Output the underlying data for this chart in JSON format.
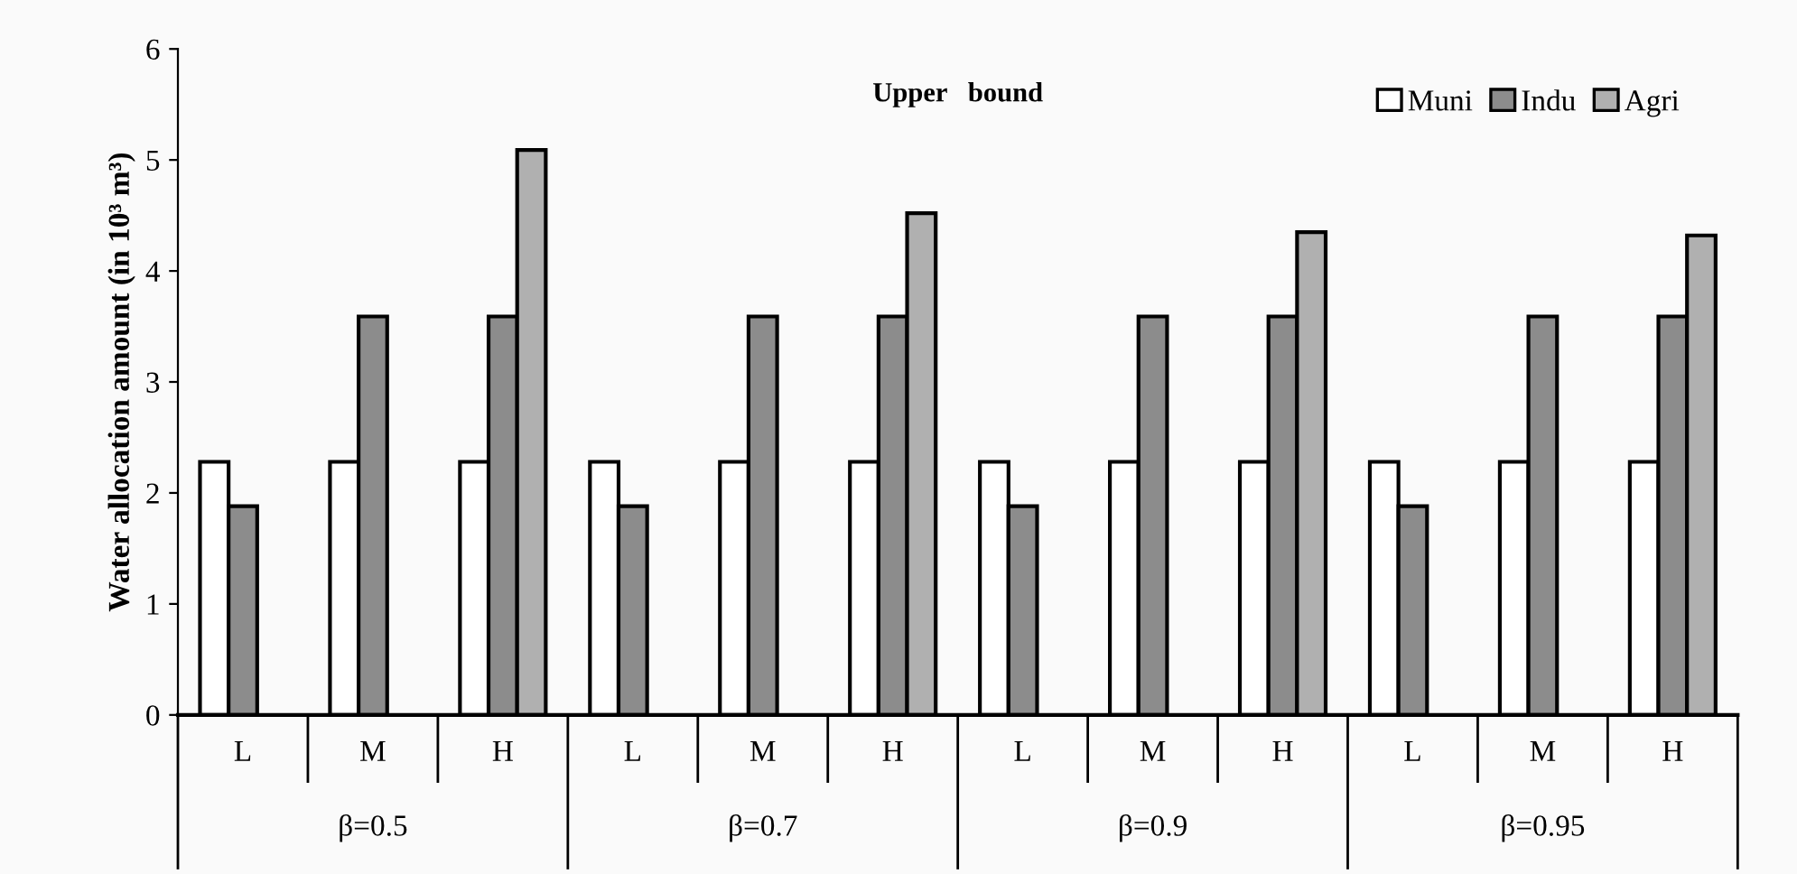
{
  "chart_data": {
    "type": "bar",
    "title": "Upper   bound",
    "ylabel": "Water allocation amount (in 10³ m³)",
    "categories": [
      "L",
      "M",
      "H",
      "L",
      "M",
      "H",
      "L",
      "M",
      "H",
      "L",
      "M",
      "H"
    ],
    "annotations": [
      "β=0.5",
      "β=0.7",
      "β=0.9",
      "β=0.95"
    ],
    "series": [
      {
        "name": "Muni",
        "color": "#ffffff",
        "values": [
          2.28,
          2.28,
          2.28,
          2.28,
          2.28,
          2.28,
          2.28,
          2.28,
          2.28,
          2.28,
          2.28,
          2.28
        ]
      },
      {
        "name": "Indu",
        "color": "#8c8c8c",
        "values": [
          1.88,
          3.59,
          3.59,
          1.88,
          3.59,
          3.59,
          1.88,
          3.59,
          3.59,
          1.88,
          3.59,
          3.59
        ]
      },
      {
        "name": "Agri",
        "color": "#b0b0b0",
        "values": [
          null,
          null,
          5.09,
          null,
          null,
          4.52,
          null,
          null,
          4.35,
          null,
          null,
          4.32
        ]
      }
    ],
    "ylim": [
      0,
      6
    ],
    "yticks": [
      0,
      1,
      2,
      3,
      4,
      5,
      6
    ],
    "grid": false,
    "legend": "top right"
  }
}
